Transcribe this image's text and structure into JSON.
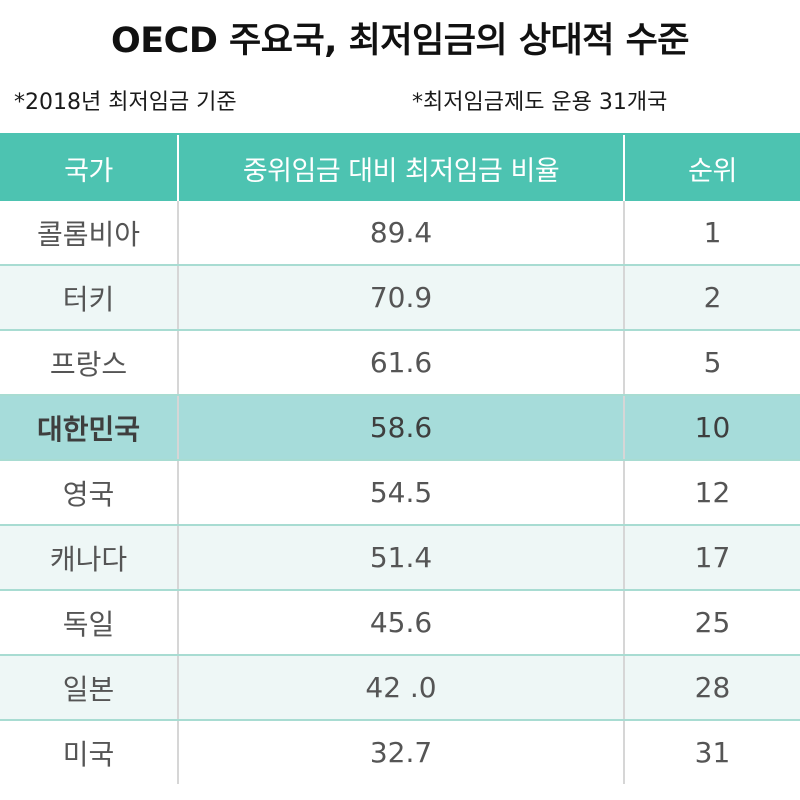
{
  "title": "OECD 주요국, 최저임금의 상대적 수준",
  "notes": [
    "*2018년 최저임금 기준",
    "*최저임금제도 운용 31개국"
  ],
  "colors": {
    "header_bg": "#4dc3b1",
    "header_text": "#ffffff",
    "row_alt": "#eef7f6",
    "highlight_row": "#a6dcda",
    "row_border": "#a8dcd2"
  },
  "highlight_country": "대한민국",
  "chart_data": {
    "type": "table",
    "title": "OECD 주요국, 최저임금의 상대적 수준",
    "columns": [
      "국가",
      "중위임금 대비 최저임금 비율",
      "순위"
    ],
    "rows": [
      [
        "콜롬비아",
        "89.4",
        "1"
      ],
      [
        "터키",
        "70.9",
        "2"
      ],
      [
        "프랑스",
        "61.6",
        "5"
      ],
      [
        "대한민국",
        "58.6",
        "10"
      ],
      [
        "영국",
        "54.5",
        "12"
      ],
      [
        "캐나다",
        "51.4",
        "17"
      ],
      [
        "독일",
        "45.6",
        "25"
      ],
      [
        "일본",
        "42 .0",
        "28"
      ],
      [
        "미국",
        "32.7",
        "31"
      ]
    ]
  }
}
